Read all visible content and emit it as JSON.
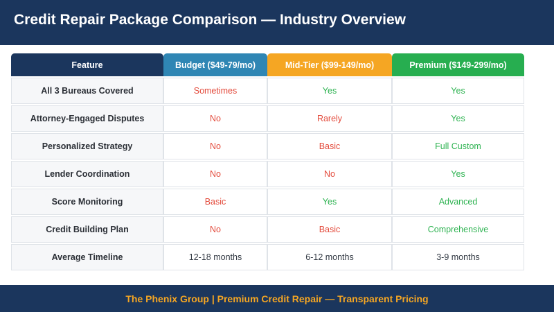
{
  "header": {
    "title": "Credit Repair Package Comparison — Industry Overview",
    "background": "#1b365d"
  },
  "table": {
    "columns": [
      {
        "label": "Feature",
        "color": "#1b365d"
      },
      {
        "label": "Budget ($49-79/mo)",
        "color": "#2f86b4"
      },
      {
        "label": "Mid-Tier ($99-149/mo)",
        "color": "#f5a623"
      },
      {
        "label": "Premium ($149-299/mo)",
        "color": "#27ae50"
      }
    ],
    "rows": [
      {
        "feature": "All 3 Bureaus Covered",
        "cells": [
          {
            "text": "Sometimes",
            "tone": "red"
          },
          {
            "text": "Yes",
            "tone": "green"
          },
          {
            "text": "Yes",
            "tone": "green"
          }
        ]
      },
      {
        "feature": "Attorney-Engaged Disputes",
        "cells": [
          {
            "text": "No",
            "tone": "red"
          },
          {
            "text": "Rarely",
            "tone": "red"
          },
          {
            "text": "Yes",
            "tone": "green"
          }
        ]
      },
      {
        "feature": "Personalized Strategy",
        "cells": [
          {
            "text": "No",
            "tone": "red"
          },
          {
            "text": "Basic",
            "tone": "red"
          },
          {
            "text": "Full Custom",
            "tone": "green"
          }
        ]
      },
      {
        "feature": "Lender Coordination",
        "cells": [
          {
            "text": "No",
            "tone": "red"
          },
          {
            "text": "No",
            "tone": "red"
          },
          {
            "text": "Yes",
            "tone": "green"
          }
        ]
      },
      {
        "feature": "Score Monitoring",
        "cells": [
          {
            "text": "Basic",
            "tone": "red"
          },
          {
            "text": "Yes",
            "tone": "green"
          },
          {
            "text": "Advanced",
            "tone": "green"
          }
        ]
      },
      {
        "feature": "Credit Building Plan",
        "cells": [
          {
            "text": "No",
            "tone": "red"
          },
          {
            "text": "Basic",
            "tone": "red"
          },
          {
            "text": "Comprehensive",
            "tone": "green"
          }
        ]
      },
      {
        "feature": "Average Timeline",
        "cells": [
          {
            "text": "12-18 months",
            "tone": "dark"
          },
          {
            "text": "6-12 months",
            "tone": "dark"
          },
          {
            "text": "3-9 months",
            "tone": "dark"
          }
        ]
      }
    ]
  },
  "footer": {
    "text": "The Phenix Group | Premium Credit Repair — Transparent Pricing",
    "text_color": "#f5a623"
  }
}
